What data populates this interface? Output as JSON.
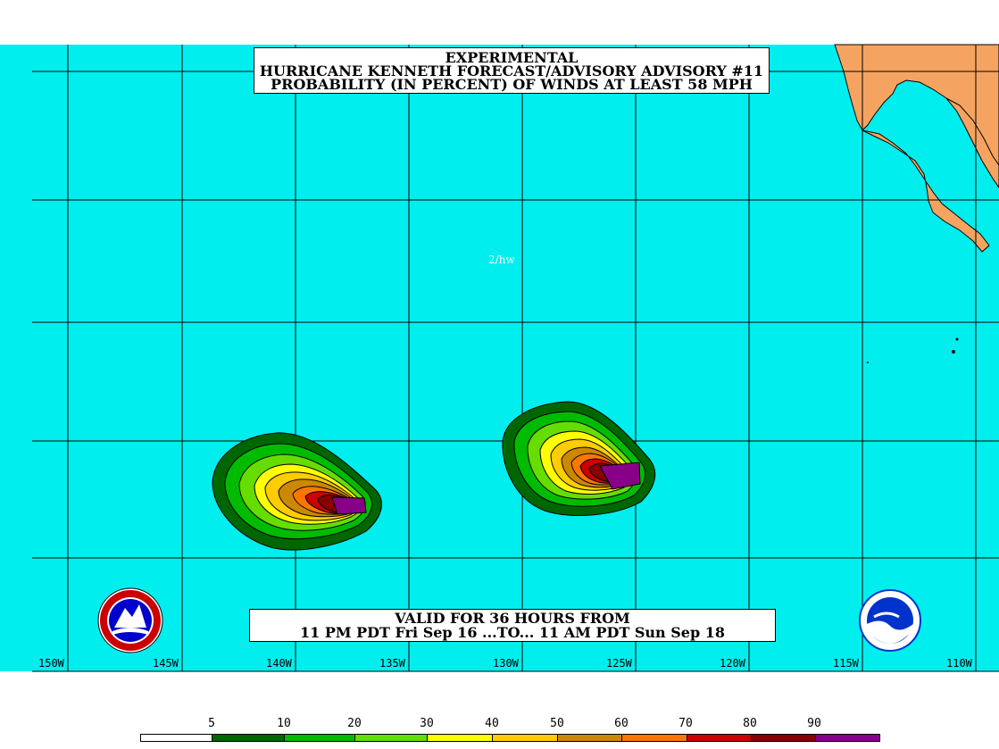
{
  "title": {
    "line1": "EXPERIMENTAL",
    "line2": "HURRICANE KENNETH FORECAST/ADVISORY ADVISORY #11",
    "line3": "PROBABILITY (IN PERCENT) OF WINDS AT LEAST 58 MPH"
  },
  "valid": {
    "line1": "VALID FOR 36 HOURS FROM",
    "line2": "11 PM PDT Fri Sep 16 ...TO... 11 AM PDT Sun Sep 18"
  },
  "credit": "2/hw",
  "longitude_labels": [
    "150W",
    "145W",
    "140W",
    "135W",
    "130W",
    "125W",
    "120W",
    "115W",
    "110W"
  ],
  "legend": {
    "labels": [
      "5",
      "10",
      "20",
      "30",
      "40",
      "50",
      "60",
      "70",
      "80",
      "90"
    ],
    "colors": [
      "#ffffff",
      "#006600",
      "#00bb00",
      "#66dd00",
      "#ffff00",
      "#ffcc00",
      "#cc8800",
      "#ff7700",
      "#cc0000",
      "#880000",
      "#880088"
    ]
  },
  "colors": {
    "ocean": "#00eeee",
    "land": "#f4a460",
    "grid": "#000000"
  },
  "logos": {
    "left": "NWS logo",
    "right": "NOAA"
  }
}
